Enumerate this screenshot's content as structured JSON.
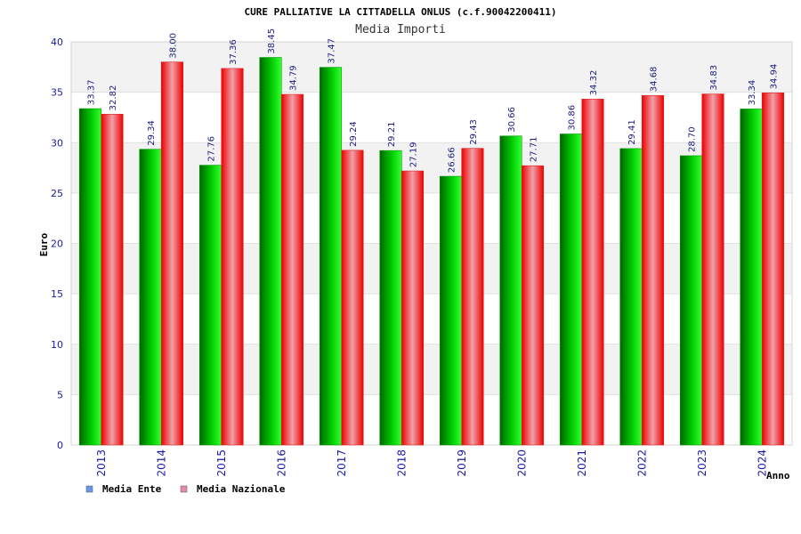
{
  "chart_data": {
    "type": "bar",
    "title": "CURE PALLIATIVE LA CITTADELLA ONLUS (c.f.90042200411)",
    "subtitle": "Media Importi",
    "ylabel": "Euro",
    "xlabel": "Anno",
    "ylim": [
      0,
      40
    ],
    "yticks": [
      "0",
      "5",
      "10",
      "15",
      "20",
      "25",
      "30",
      "35",
      "40"
    ],
    "grid": true,
    "legend_position": "bottom-left",
    "categories": [
      "2013",
      "2014",
      "2015",
      "2016",
      "2017",
      "2018",
      "2019",
      "2020",
      "2021",
      "2022",
      "2023",
      "2024"
    ],
    "series": [
      {
        "name": "Media Ente",
        "color": "#00b400",
        "legend_color": "#6699ee",
        "values": [
          33.37,
          29.34,
          27.76,
          38.45,
          37.47,
          29.21,
          26.66,
          30.66,
          30.86,
          29.41,
          28.7,
          33.34
        ],
        "labels": [
          "33.37",
          "29.34",
          "27.76",
          "38.45",
          "37.47",
          "29.21",
          "26.66",
          "30.66",
          "30.86",
          "29.41",
          "28.70",
          "33.34"
        ]
      },
      {
        "name": "Media Nazionale",
        "color": "#f01010",
        "legend_color": "#e88aa8",
        "values": [
          32.82,
          38.0,
          37.36,
          34.79,
          29.24,
          27.19,
          29.43,
          27.71,
          34.32,
          34.68,
          34.83,
          34.94
        ],
        "labels": [
          "32.82",
          "38.00",
          "37.36",
          "34.79",
          "29.24",
          "27.19",
          "29.43",
          "27.71",
          "34.32",
          "34.68",
          "34.83",
          "34.94"
        ]
      }
    ]
  }
}
